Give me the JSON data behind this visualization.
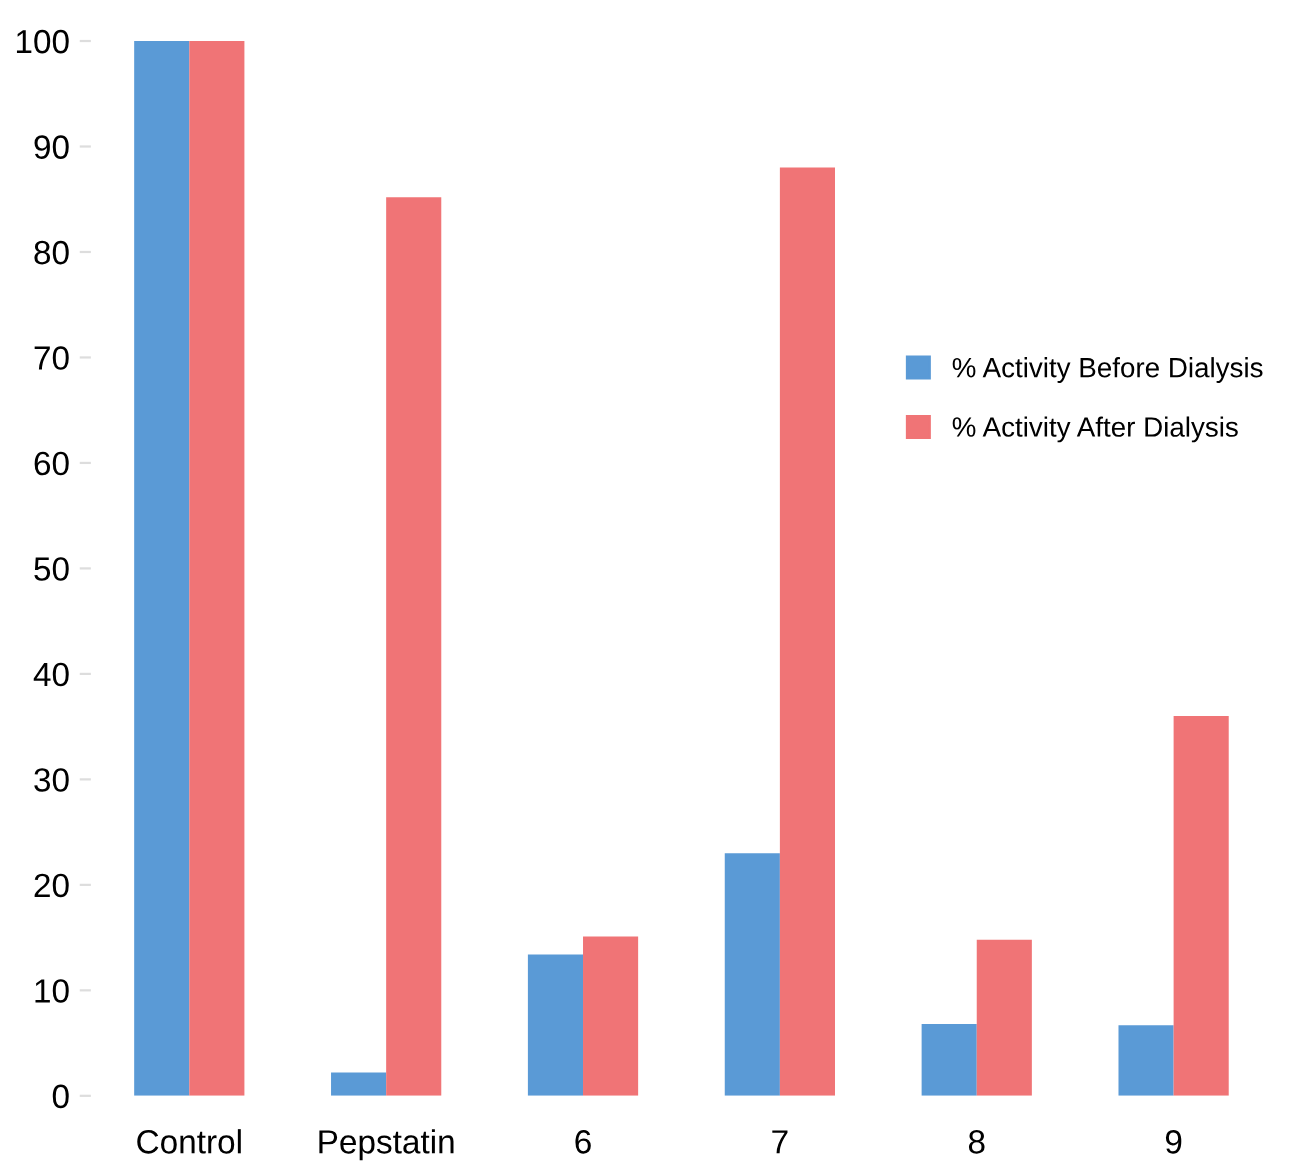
{
  "chart_data": {
    "type": "bar",
    "categories": [
      "Control",
      "Pepstatin",
      "6",
      "7",
      "8",
      "9"
    ],
    "series": [
      {
        "name": "% Activity Before Dialysis",
        "color": "#5a9ad6",
        "values": [
          100,
          2.2,
          13.4,
          23.0,
          6.8,
          6.7
        ]
      },
      {
        "name": "% Activity After Dialysis",
        "color": "#f07476",
        "values": [
          100,
          85.2,
          15.1,
          88.0,
          14.8,
          36.0
        ]
      }
    ],
    "ylim": [
      0,
      100
    ],
    "yticks": [
      0,
      10,
      20,
      30,
      40,
      50,
      60,
      70,
      80,
      90,
      100
    ],
    "grid": false,
    "legend": "right"
  }
}
